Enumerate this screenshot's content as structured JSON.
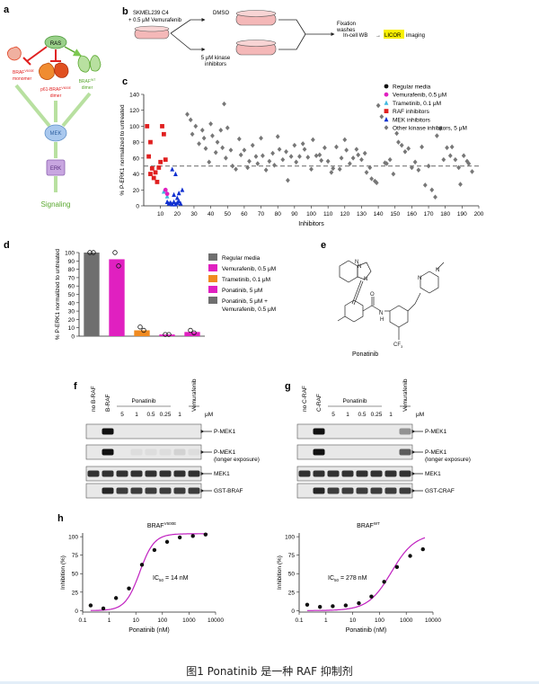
{
  "caption": "图1  Ponatinib 是一种 RAF 抑制剂",
  "panels": {
    "a": {
      "letter": "a",
      "nodes": {
        "ras": "RAS",
        "mek": "MEK",
        "erk": "ERK",
        "signaling": "Signaling"
      },
      "labels": {
        "left_1": "BRAF",
        "left_1_sup": "V600E",
        "left_2": "monomer",
        "center_1": "p61-BRAF",
        "center_1_sup": "V600E",
        "center_2": "dimer",
        "right_1": "BRAF",
        "right_1_sup": "WT",
        "right_2": "dimer"
      },
      "colors": {
        "ras": "#9ad08a",
        "mek": "#a9c8ee",
        "erk": "#c8a6e0",
        "red": "#e02020",
        "green": "#5aa830",
        "orange": "#f08c30"
      }
    },
    "b": {
      "letter": "b",
      "start_1": "SKMEL239 C4",
      "start_2": "+ 0.5 μM Vemurafenib",
      "top": "DMSO",
      "bottom_1": "5 μM kinase",
      "bottom_2": "inhibitors",
      "fix_1": "Fixation",
      "fix_2": "washes",
      "readout": "In-cell WB",
      "arrow": "→",
      "licor": "LICOR",
      "imaging": "imaging"
    },
    "c": {
      "letter": "c",
      "legend": [
        {
          "label": "Regular media",
          "color": "#111111",
          "shape": "circle"
        },
        {
          "label": "Vemurafenib, 0.5 μM",
          "color": "#e020c0",
          "shape": "circle"
        },
        {
          "label": "Trametinib, 0.1 μM",
          "color": "#40b8e0",
          "shape": "triangle"
        },
        {
          "label": "RAF inhibitors",
          "color": "#e02020",
          "shape": "square"
        },
        {
          "label": "MEK inhibitors",
          "color": "#1030d0",
          "shape": "triangle"
        },
        {
          "label": "Other kinase inhibitors, 5 μM",
          "color": "#777777",
          "shape": "diamond"
        }
      ]
    },
    "d": {
      "letter": "d",
      "legend": [
        {
          "label": "Regular media",
          "color": "#6f6f6f"
        },
        {
          "label": "Vemurafenib, 0.5 μM",
          "color": "#e020c0"
        },
        {
          "label": "Trametinib, 0.1 μM",
          "color": "#f08a20"
        },
        {
          "label": "Ponatinib, 5 μM",
          "color": "#e020c0"
        },
        {
          "label": "Ponatinib, 5 μM +",
          "label2": "Vemurafenib, 0.5 μM",
          "color": "#6f6f6f"
        }
      ]
    },
    "e": {
      "letter": "e",
      "name": "Ponatinib",
      "atoms": {
        "n": "N",
        "o": "O",
        "nh": "N",
        "h": "H",
        "cf3": "CF",
        "cf3_sub": "3"
      }
    },
    "f": {
      "letter": "f",
      "lanes": [
        "no B-RAF",
        "B-RAF"
      ],
      "drug": "Ponatinib",
      "drug2": "Vemurafenib",
      "conc": [
        "5",
        "1",
        "0.5",
        "0.25",
        "1"
      ],
      "unit": "μM",
      "rows": [
        "P-MEK1",
        "P-MEK1",
        "MEK1",
        "GST-BRAF"
      ],
      "row2_sub": "(longer exposure)"
    },
    "g": {
      "letter": "g",
      "lanes": [
        "no C-RAF",
        "C-RAF"
      ],
      "drug": "Ponatinib",
      "drug2": "Vemurafenib",
      "conc": [
        "5",
        "1",
        "0.5",
        "0.25",
        "1"
      ],
      "unit": "μM",
      "rows": [
        "P-MEK1",
        "P-MEK1",
        "MEK1",
        "GST-CRAF"
      ],
      "row2_sub": "(longer exposure)"
    },
    "h": {
      "letter": "h",
      "left_title": "BRAF",
      "left_title_sup": "V600E",
      "right_title": "BRAF",
      "right_title_sup": "WT",
      "left_ic50": "= 14 nM",
      "right_ic50": "= 278 nM",
      "ic50": "IC",
      "ic50_sub": "50"
    }
  },
  "chart_data": [
    {
      "type": "scatter",
      "panel": "c",
      "xlabel": "Inhibitors",
      "ylabel": "% P-ERK1 normalized to untreated",
      "xlim": [
        0,
        200
      ],
      "ylim": [
        0,
        140
      ],
      "xticks": [
        "10",
        "20",
        "30",
        "40",
        "50",
        "60",
        "70",
        "80",
        "90",
        "100",
        "110",
        "120",
        "130",
        "140",
        "150",
        "160",
        "170",
        "180",
        "190",
        "200"
      ],
      "yticks": [
        "0",
        "20",
        "40",
        "60",
        "80",
        "100",
        "120",
        "140"
      ],
      "threshold": 50,
      "series": [
        {
          "name": "RAF inhibitors",
          "color": "#e02020",
          "marker": "square",
          "points": [
            [
              2,
              100
            ],
            [
              4,
              80
            ],
            [
              3,
              62
            ],
            [
              5,
              47
            ],
            [
              4,
              40
            ],
            [
              6,
              35
            ],
            [
              7,
              42
            ],
            [
              9,
              48
            ],
            [
              11,
              100
            ],
            [
              12,
              90
            ],
            [
              10,
              55
            ],
            [
              13,
              58
            ],
            [
              8,
              30
            ]
          ]
        },
        {
          "name": "MEK inhibitors",
          "color": "#1030d0",
          "marker": "triangle",
          "points": [
            [
              17,
              46
            ],
            [
              19,
              40
            ],
            [
              18,
              14
            ],
            [
              21,
              16
            ],
            [
              23,
              20
            ],
            [
              14,
              5
            ],
            [
              15,
              3
            ],
            [
              16,
              4
            ],
            [
              17,
              2
            ],
            [
              18,
              5
            ],
            [
              19,
              2
            ],
            [
              20,
              4
            ],
            [
              21,
              6
            ],
            [
              22,
              3
            ],
            [
              20,
              10
            ]
          ]
        },
        {
          "name": "Trametinib, 0.1 μM",
          "color": "#40b8e0",
          "marker": "triangle",
          "points": [
            [
              12,
              18
            ],
            [
              13,
              20
            ],
            [
              14,
              12
            ]
          ]
        },
        {
          "name": "Vemurafenib, 0.5 μM",
          "color": "#e020c0",
          "marker": "circle",
          "points": [
            [
              13,
              20
            ],
            [
              14,
              15
            ]
          ]
        },
        {
          "name": "Other kinase inhibitors, 5 μM",
          "color": "#777777",
          "marker": "diamond",
          "points": [
            [
              26,
              115
            ],
            [
              28,
              108
            ],
            [
              29,
              90
            ],
            [
              31,
              100
            ],
            [
              33,
              78
            ],
            [
              35,
              95
            ],
            [
              36,
              85
            ],
            [
              37,
              72
            ],
            [
              39,
              55
            ],
            [
              40,
              103
            ],
            [
              41,
              88
            ],
            [
              43,
              67
            ],
            [
              44,
              80
            ],
            [
              46,
              95
            ],
            [
              47,
              73
            ],
            [
              48,
              128
            ],
            [
              49,
              60
            ],
            [
              50,
              98
            ],
            [
              52,
              70
            ],
            [
              53,
              50
            ],
            [
              55,
              46
            ],
            [
              57,
              84
            ],
            [
              58,
              64
            ],
            [
              60,
              70
            ],
            [
              62,
              48
            ],
            [
              63,
              56
            ],
            [
              65,
              76
            ],
            [
              67,
              62
            ],
            [
              68,
              53
            ],
            [
              70,
              85
            ],
            [
              71,
              63
            ],
            [
              73,
              45
            ],
            [
              75,
              56
            ],
            [
              77,
              66
            ],
            [
              78,
              51
            ],
            [
              80,
              87
            ],
            [
              81,
              71
            ],
            [
              83,
              58
            ],
            [
              85,
              68
            ],
            [
              86,
              32
            ],
            [
              88,
              62
            ],
            [
              90,
              76
            ],
            [
              91,
              55
            ],
            [
              93,
              62
            ],
            [
              95,
              78
            ],
            [
              96,
              71
            ],
            [
              98,
              61
            ],
            [
              100,
              46
            ],
            [
              101,
              83
            ],
            [
              103,
              63
            ],
            [
              105,
              64
            ],
            [
              106,
              57
            ],
            [
              108,
              73
            ],
            [
              110,
              56
            ],
            [
              112,
              42
            ],
            [
              113,
              47
            ],
            [
              115,
              74
            ],
            [
              117,
              46
            ],
            [
              118,
              60
            ],
            [
              120,
              83
            ],
            [
              121,
              70
            ],
            [
              123,
              53
            ],
            [
              125,
              60
            ],
            [
              127,
              71
            ],
            [
              128,
              64
            ],
            [
              130,
              58
            ],
            [
              132,
              66
            ],
            [
              133,
              42
            ],
            [
              135,
              48
            ],
            [
              136,
              34
            ],
            [
              138,
              31
            ],
            [
              139,
              29
            ],
            [
              140,
              126
            ],
            [
              142,
              112
            ],
            [
              144,
              54
            ],
            [
              145,
              53
            ],
            [
              147,
              58
            ],
            [
              149,
              40
            ],
            [
              151,
              91
            ],
            [
              152,
              80
            ],
            [
              154,
              76
            ],
            [
              156,
              68
            ],
            [
              158,
              72
            ],
            [
              160,
              48
            ],
            [
              162,
              55
            ],
            [
              164,
              45
            ],
            [
              166,
              74
            ],
            [
              168,
              26
            ],
            [
              170,
              50
            ],
            [
              172,
              20
            ],
            [
              174,
              11
            ],
            [
              175,
              88
            ],
            [
              177,
              97
            ],
            [
              179,
              58
            ],
            [
              181,
              73
            ],
            [
              183,
              63
            ],
            [
              184,
              74
            ],
            [
              186,
              58
            ],
            [
              188,
              48
            ],
            [
              189,
              27
            ],
            [
              191,
              63
            ],
            [
              193,
              56
            ],
            [
              194,
              53
            ],
            [
              196,
              43
            ]
          ]
        }
      ]
    },
    {
      "type": "bar",
      "panel": "d",
      "ylabel": "% P-ERK1 normalized to untreated",
      "ylim": [
        0,
        100
      ],
      "yticks": [
        "0",
        "10",
        "20",
        "30",
        "40",
        "50",
        "60",
        "70",
        "80",
        "90",
        "100"
      ],
      "categories": [
        "Regular media",
        "Vemurafenib, 0.5 μM",
        "Trametinib, 0.1 μM",
        "Ponatinib, 5 μM",
        "Ponatinib, 5 μM + Vemurafenib, 0.5 μM"
      ],
      "values": [
        100,
        92,
        7,
        2,
        5
      ],
      "colors": [
        "#6f6f6f",
        "#e020c0",
        "#f08a20",
        "#e020c0",
        "#e020c0"
      ],
      "replicates": [
        [
          100,
          100
        ],
        [
          100,
          84
        ],
        [
          11,
          7
        ],
        [
          2,
          2
        ],
        [
          7,
          4
        ]
      ]
    },
    {
      "type": "line",
      "panel": "h-left",
      "xlabel": "Ponatinib (nM)",
      "ylabel": "Inhibition (%)",
      "xscale": "log",
      "xlim": [
        0.1,
        10000
      ],
      "ylim": [
        -2,
        105
      ],
      "xticks": [
        "0.1",
        "1",
        "10",
        "100",
        "1000",
        "10000"
      ],
      "yticks": [
        "0",
        "25",
        "50",
        "75",
        "100"
      ],
      "ic50": 14,
      "hill": 1.6,
      "points": [
        [
          0.2,
          7
        ],
        [
          0.6,
          3
        ],
        [
          1.8,
          17
        ],
        [
          5.5,
          30
        ],
        [
          17,
          62
        ],
        [
          50,
          82
        ],
        [
          150,
          93
        ],
        [
          450,
          99
        ],
        [
          1400,
          101
        ],
        [
          4200,
          103
        ]
      ]
    },
    {
      "type": "line",
      "panel": "h-right",
      "xlabel": "Ponatinib (nM)",
      "ylabel": "Inhibition (%)",
      "xscale": "log",
      "xlim": [
        0.1,
        10000
      ],
      "ylim": [
        -2,
        105
      ],
      "xticks": [
        "0.1",
        "1",
        "10",
        "100",
        "1000",
        "10000"
      ],
      "yticks": [
        "0",
        "25",
        "50",
        "75",
        "100"
      ],
      "ic50": 278,
      "hill": 1.0,
      "points": [
        [
          0.2,
          8
        ],
        [
          0.6,
          5
        ],
        [
          1.8,
          6
        ],
        [
          5.5,
          7
        ],
        [
          17,
          10
        ],
        [
          50,
          19
        ],
        [
          150,
          39
        ],
        [
          450,
          59
        ],
        [
          1400,
          74
        ],
        [
          4200,
          83
        ]
      ]
    }
  ]
}
